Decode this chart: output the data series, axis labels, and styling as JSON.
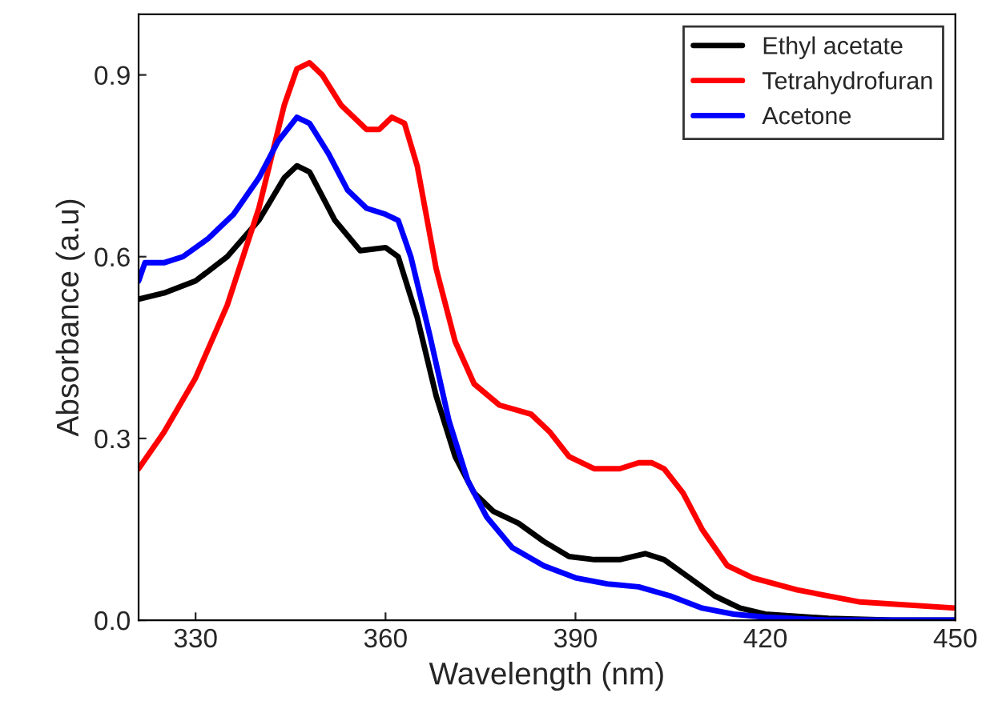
{
  "chart_data": {
    "type": "line",
    "xlabel": "Wavelength (nm)",
    "ylabel": "Absorbance (a.u)",
    "xlim": [
      321,
      450
    ],
    "ylim": [
      0,
      1.0
    ],
    "xticks": [
      330,
      360,
      390,
      420,
      450
    ],
    "yticks": [
      {
        "value": 0,
        "label": "0.0"
      },
      {
        "value": 0.3,
        "label": "0.3"
      },
      {
        "value": 0.6,
        "label": "0.6"
      },
      {
        "value": 0.9,
        "label": "0.9"
      }
    ],
    "grid": false,
    "legend": "top right",
    "marker": "none",
    "line_style": "solid",
    "series": [
      {
        "name": "Ethyl acetate",
        "color": "#000000",
        "x": [
          321,
          325,
          330,
          335,
          340,
          344,
          346,
          348,
          352,
          356,
          360,
          362,
          365,
          368,
          371,
          374,
          377,
          381,
          385,
          389,
          393,
          397,
          401,
          404,
          408,
          412,
          416,
          420,
          430,
          440,
          450
        ],
        "values": [
          0.53,
          0.54,
          0.56,
          0.6,
          0.66,
          0.73,
          0.75,
          0.74,
          0.66,
          0.61,
          0.615,
          0.6,
          0.5,
          0.37,
          0.27,
          0.21,
          0.18,
          0.16,
          0.13,
          0.105,
          0.1,
          0.1,
          0.11,
          0.1,
          0.07,
          0.04,
          0.02,
          0.01,
          0.003,
          0.0,
          0.0
        ]
      },
      {
        "name": "Tetrahydrofuran",
        "color": "#ff0000",
        "x": [
          321,
          325,
          330,
          335,
          340,
          344,
          346,
          348,
          350,
          353,
          357,
          359,
          361,
          363,
          365,
          368,
          371,
          374,
          378,
          383,
          386,
          389,
          393,
          397,
          400,
          402,
          404,
          407,
          410,
          414,
          418,
          425,
          435,
          450
        ],
        "values": [
          0.25,
          0.31,
          0.4,
          0.52,
          0.68,
          0.85,
          0.91,
          0.92,
          0.9,
          0.85,
          0.81,
          0.81,
          0.83,
          0.82,
          0.75,
          0.58,
          0.46,
          0.39,
          0.355,
          0.34,
          0.31,
          0.27,
          0.25,
          0.25,
          0.26,
          0.26,
          0.25,
          0.21,
          0.15,
          0.09,
          0.07,
          0.05,
          0.03,
          0.02
        ]
      },
      {
        "name": "Acetone",
        "color": "#0000ff",
        "x": [
          321,
          322,
          325,
          328,
          332,
          336,
          340,
          343,
          346,
          348,
          351,
          354,
          357,
          360,
          362,
          364,
          367,
          370,
          373,
          376,
          380,
          385,
          390,
          395,
          400,
          405,
          410,
          415,
          420,
          430,
          450
        ],
        "values": [
          0.56,
          0.59,
          0.59,
          0.6,
          0.63,
          0.67,
          0.73,
          0.79,
          0.83,
          0.82,
          0.77,
          0.71,
          0.68,
          0.67,
          0.66,
          0.6,
          0.47,
          0.33,
          0.23,
          0.17,
          0.12,
          0.09,
          0.07,
          0.06,
          0.055,
          0.04,
          0.02,
          0.01,
          0.005,
          0.0,
          0.0
        ]
      }
    ]
  }
}
